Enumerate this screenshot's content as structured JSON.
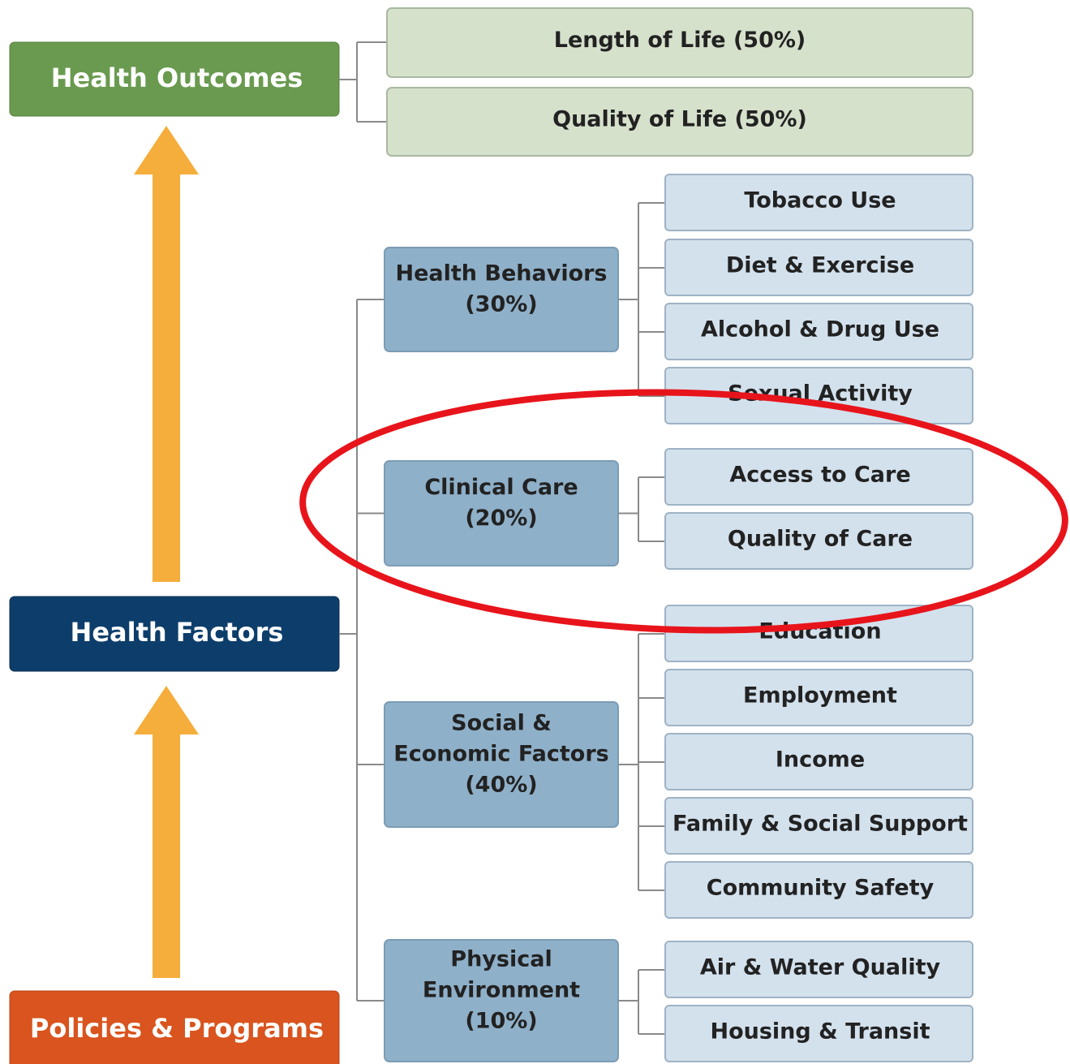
{
  "left": {
    "outcomes": "Health Outcomes",
    "factors": "Health Factors",
    "policies": "Policies & Programs"
  },
  "outcomes": [
    "Length of Life (50%)",
    "Quality of Life (50%)"
  ],
  "factors": [
    {
      "lines": [
        "Health Behaviors",
        "(30%)"
      ],
      "items": [
        "Tobacco Use",
        "Diet & Exercise",
        "Alcohol & Drug Use",
        "Sexual Activity"
      ]
    },
    {
      "lines": [
        "Clinical Care",
        "(20%)"
      ],
      "items": [
        "Access to Care",
        "Quality of Care"
      ]
    },
    {
      "lines": [
        "Social &",
        "Economic Factors",
        "(40%)"
      ],
      "items": [
        "Education",
        "Employment",
        "Income",
        "Family & Social Support",
        "Community Safety"
      ]
    },
    {
      "lines": [
        "Physical",
        "Environment",
        "(10%)"
      ],
      "items": [
        "Air & Water Quality",
        "Housing & Transit"
      ]
    }
  ]
}
